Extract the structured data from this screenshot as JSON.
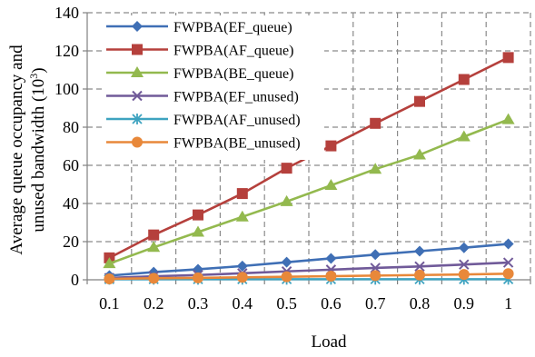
{
  "chart_data": {
    "type": "line",
    "title": "",
    "xlabel": "Load",
    "ylabel_line1": "Average queue occupancy and",
    "ylabel_line2_prefix": "unused bandwidth (10",
    "ylabel_line2_sup": "3",
    "ylabel_line2_suffix": ")",
    "x": [
      0.1,
      0.2,
      0.3,
      0.4,
      0.5,
      0.6,
      0.7,
      0.8,
      0.9,
      1
    ],
    "x_tick_labels": [
      "0.1",
      "0.2",
      "0.3",
      "0.4",
      "0.5",
      "0.6",
      "0.7",
      "0.8",
      "0.9",
      "1"
    ],
    "ylim": [
      0,
      140
    ],
    "y_ticks": [
      0,
      20,
      40,
      60,
      80,
      100,
      120,
      140
    ],
    "y_tick_labels": [
      "0",
      "20",
      "40",
      "60",
      "80",
      "100",
      "120",
      "140"
    ],
    "grid": true,
    "legend_position": "top-left",
    "series": [
      {
        "name": "FWPBA(EF_queue)",
        "color": "#3f6fb5",
        "marker": "diamond",
        "values": [
          2.2,
          4.0,
          5.5,
          7.2,
          9.2,
          11.2,
          13.2,
          15.0,
          16.8,
          18.8
        ]
      },
      {
        "name": "FWPBA(AF_queue)",
        "color": "#b5403c",
        "marker": "square",
        "values": [
          11.5,
          23.5,
          34.0,
          45.2,
          58.5,
          70.2,
          82.0,
          93.5,
          105.0,
          116.5
        ]
      },
      {
        "name": "FWPBA(BE_queue)",
        "color": "#93b94e",
        "marker": "triangle",
        "values": [
          8.5,
          17.0,
          25.0,
          33.0,
          41.0,
          49.5,
          58.0,
          65.5,
          75.0,
          84.0
        ]
      },
      {
        "name": "FWPBA(EF_unused)",
        "color": "#705a99",
        "marker": "x",
        "values": [
          1.0,
          1.8,
          2.5,
          3.4,
          4.4,
          5.3,
          6.2,
          7.0,
          8.0,
          9.0
        ]
      },
      {
        "name": "FWPBA(AF_unused)",
        "color": "#3ea3c0",
        "marker": "asterisk",
        "values": [
          0.3,
          0.3,
          0.3,
          0.3,
          0.3,
          0.3,
          0.3,
          0.3,
          0.3,
          0.3
        ]
      },
      {
        "name": "FWPBA(BE_unused)",
        "color": "#e8883a",
        "marker": "circle",
        "values": [
          0.5,
          0.8,
          1.0,
          1.3,
          1.6,
          1.9,
          2.2,
          2.5,
          2.8,
          3.2
        ]
      }
    ]
  }
}
